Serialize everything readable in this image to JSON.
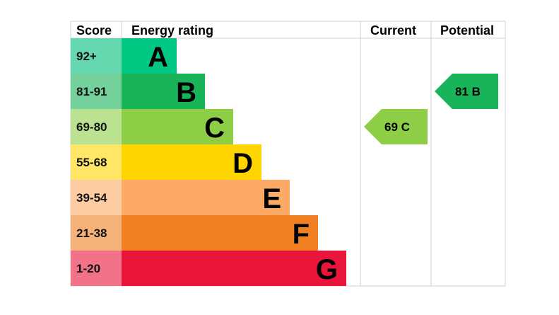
{
  "chart_data": {
    "type": "table",
    "headers": {
      "score": "Score",
      "rating": "Energy rating",
      "current": "Current",
      "potential": "Potential"
    },
    "bands": [
      {
        "score": "92+",
        "letter": "A",
        "color": "#00c781",
        "score_color": "#66d8b0"
      },
      {
        "score": "81-91",
        "letter": "B",
        "color": "#19b459",
        "score_color": "#75d19b"
      },
      {
        "score": "69-80",
        "letter": "C",
        "color": "#8dce46",
        "score_color": "#bbe290"
      },
      {
        "score": "55-68",
        "letter": "D",
        "color": "#ffd500",
        "score_color": "#ffe666"
      },
      {
        "score": "39-54",
        "letter": "E",
        "color": "#fcaa65",
        "score_color": "#fdcca3"
      },
      {
        "score": "21-38",
        "letter": "F",
        "color": "#ef8023",
        "score_color": "#f5b37b"
      },
      {
        "score": "1-20",
        "letter": "G",
        "color": "#e9153b",
        "score_color": "#f27389"
      }
    ],
    "current": {
      "value": 69,
      "letter": "C",
      "label": "69  C"
    },
    "potential": {
      "value": 81,
      "letter": "B",
      "label": "81  B"
    }
  }
}
